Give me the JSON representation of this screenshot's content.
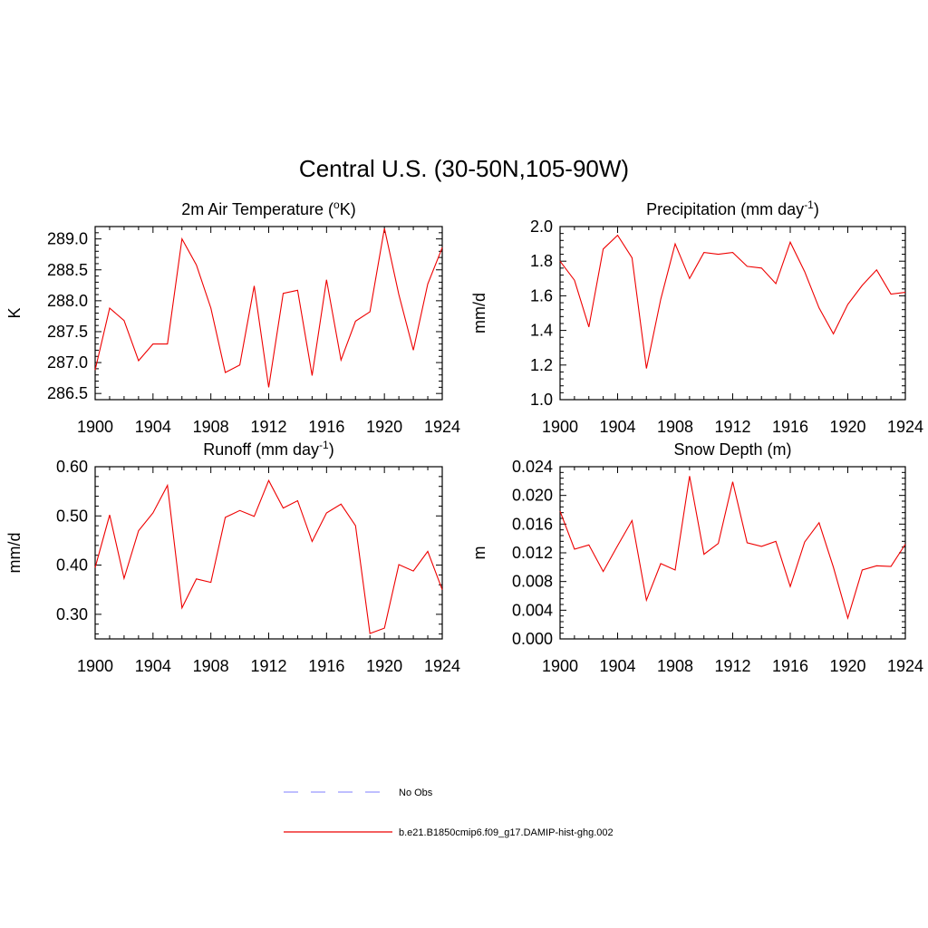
{
  "figure": {
    "title": "Central U.S. (30-50N,105-90W)"
  },
  "chart_data": [
    {
      "type": "line",
      "title_main": "2m Air Temperature (",
      "title_sup": "o",
      "title_tail": "K)",
      "ylabel": "K",
      "xlim": [
        1900,
        1924
      ],
      "ylim": [
        286.4,
        289.2
      ],
      "x_ticks": [
        "1900",
        "1904",
        "1908",
        "1912",
        "1916",
        "1920",
        "1924"
      ],
      "y_ticks": [
        "286.5",
        "287.0",
        "287.5",
        "288.0",
        "288.5",
        "289.0"
      ],
      "x": [
        1900,
        1901,
        1902,
        1903,
        1904,
        1905,
        1906,
        1907,
        1908,
        1909,
        1910,
        1911,
        1912,
        1913,
        1914,
        1915,
        1916,
        1917,
        1918,
        1919,
        1920,
        1921,
        1922,
        1923,
        1924
      ],
      "series": [
        {
          "name": "b.e21.B1850cmip6.f09_g17.DAMIP-hist-ghg.002",
          "values": [
            286.88,
            287.88,
            287.68,
            287.03,
            287.3,
            287.3,
            289.0,
            288.58,
            287.88,
            286.84,
            286.96,
            288.24,
            286.6,
            288.12,
            288.17,
            286.79,
            288.34,
            287.04,
            287.67,
            287.82,
            289.17,
            288.1,
            287.2,
            288.27,
            288.86
          ]
        }
      ]
    },
    {
      "type": "line",
      "title_main": "Precipitation (mm day",
      "title_sup": "-1",
      "title_tail": ")",
      "ylabel": "mm/d",
      "xlim": [
        1900,
        1924
      ],
      "ylim": [
        1.0,
        2.0
      ],
      "x_ticks": [
        "1900",
        "1904",
        "1908",
        "1912",
        "1916",
        "1920",
        "1924"
      ],
      "y_ticks": [
        "1.0",
        "1.2",
        "1.4",
        "1.6",
        "1.8",
        "2.0"
      ],
      "x": [
        1900,
        1901,
        1902,
        1903,
        1904,
        1905,
        1906,
        1907,
        1908,
        1909,
        1910,
        1911,
        1912,
        1913,
        1914,
        1915,
        1916,
        1917,
        1918,
        1919,
        1920,
        1921,
        1922,
        1923,
        1924
      ],
      "series": [
        {
          "name": "b.e21.B1850cmip6.f09_g17.DAMIP-hist-ghg.002",
          "values": [
            1.8,
            1.69,
            1.42,
            1.87,
            1.95,
            1.82,
            1.18,
            1.58,
            1.9,
            1.7,
            1.85,
            1.84,
            1.85,
            1.77,
            1.76,
            1.67,
            1.91,
            1.74,
            1.53,
            1.38,
            1.55,
            1.66,
            1.75,
            1.61,
            1.62
          ]
        }
      ]
    },
    {
      "type": "line",
      "title_main": "Runoff (mm day",
      "title_sup": "-1",
      "title_tail": ")",
      "ylabel": "mm/d",
      "xlim": [
        1900,
        1924
      ],
      "ylim": [
        0.25,
        0.6
      ],
      "x_ticks": [
        "1900",
        "1904",
        "1908",
        "1912",
        "1916",
        "1920",
        "1924"
      ],
      "y_ticks": [
        "0.30",
        "0.40",
        "0.50",
        "0.60"
      ],
      "x": [
        1900,
        1901,
        1902,
        1903,
        1904,
        1905,
        1906,
        1907,
        1908,
        1909,
        1910,
        1911,
        1912,
        1913,
        1914,
        1915,
        1916,
        1917,
        1918,
        1919,
        1920,
        1921,
        1922,
        1923,
        1924
      ],
      "series": [
        {
          "name": "b.e21.B1850cmip6.f09_g17.DAMIP-hist-ghg.002",
          "values": [
            0.395,
            0.502,
            0.373,
            0.47,
            0.506,
            0.562,
            0.313,
            0.372,
            0.365,
            0.497,
            0.511,
            0.499,
            0.572,
            0.516,
            0.531,
            0.448,
            0.506,
            0.524,
            0.48,
            0.261,
            0.272,
            0.401,
            0.388,
            0.428,
            0.35
          ]
        }
      ]
    },
    {
      "type": "line",
      "title_main": "Snow Depth (m)",
      "title_sup": "",
      "title_tail": "",
      "ylabel": "m",
      "xlim": [
        1900,
        1924
      ],
      "ylim": [
        0.0,
        0.024
      ],
      "x_ticks": [
        "1900",
        "1904",
        "1908",
        "1912",
        "1916",
        "1920",
        "1924"
      ],
      "y_ticks": [
        "0.000",
        "0.004",
        "0.008",
        "0.012",
        "0.016",
        "0.020",
        "0.024"
      ],
      "x": [
        1900,
        1901,
        1902,
        1903,
        1904,
        1905,
        1906,
        1907,
        1908,
        1909,
        1910,
        1911,
        1912,
        1913,
        1914,
        1915,
        1916,
        1917,
        1918,
        1919,
        1920,
        1921,
        1922,
        1923,
        1924
      ],
      "series": [
        {
          "name": "b.e21.B1850cmip6.f09_g17.DAMIP-hist-ghg.002",
          "values": [
            0.0178,
            0.0125,
            0.0131,
            0.0094,
            0.013,
            0.0165,
            0.0054,
            0.0105,
            0.0096,
            0.0227,
            0.0118,
            0.0133,
            0.0219,
            0.0134,
            0.0129,
            0.0136,
            0.0073,
            0.0135,
            0.0162,
            0.01,
            0.0029,
            0.0096,
            0.0102,
            0.0101,
            0.0132
          ]
        }
      ]
    }
  ],
  "legend": {
    "items": [
      {
        "label": "No Obs",
        "color": "#9999ff",
        "dash": true
      },
      {
        "label": "b.e21.B1850cmip6.f09_g17.DAMIP-hist-ghg.002",
        "color": "#ee0000",
        "dash": false
      }
    ]
  },
  "colors": {
    "series": "#ee0000",
    "axis": "#000000"
  }
}
